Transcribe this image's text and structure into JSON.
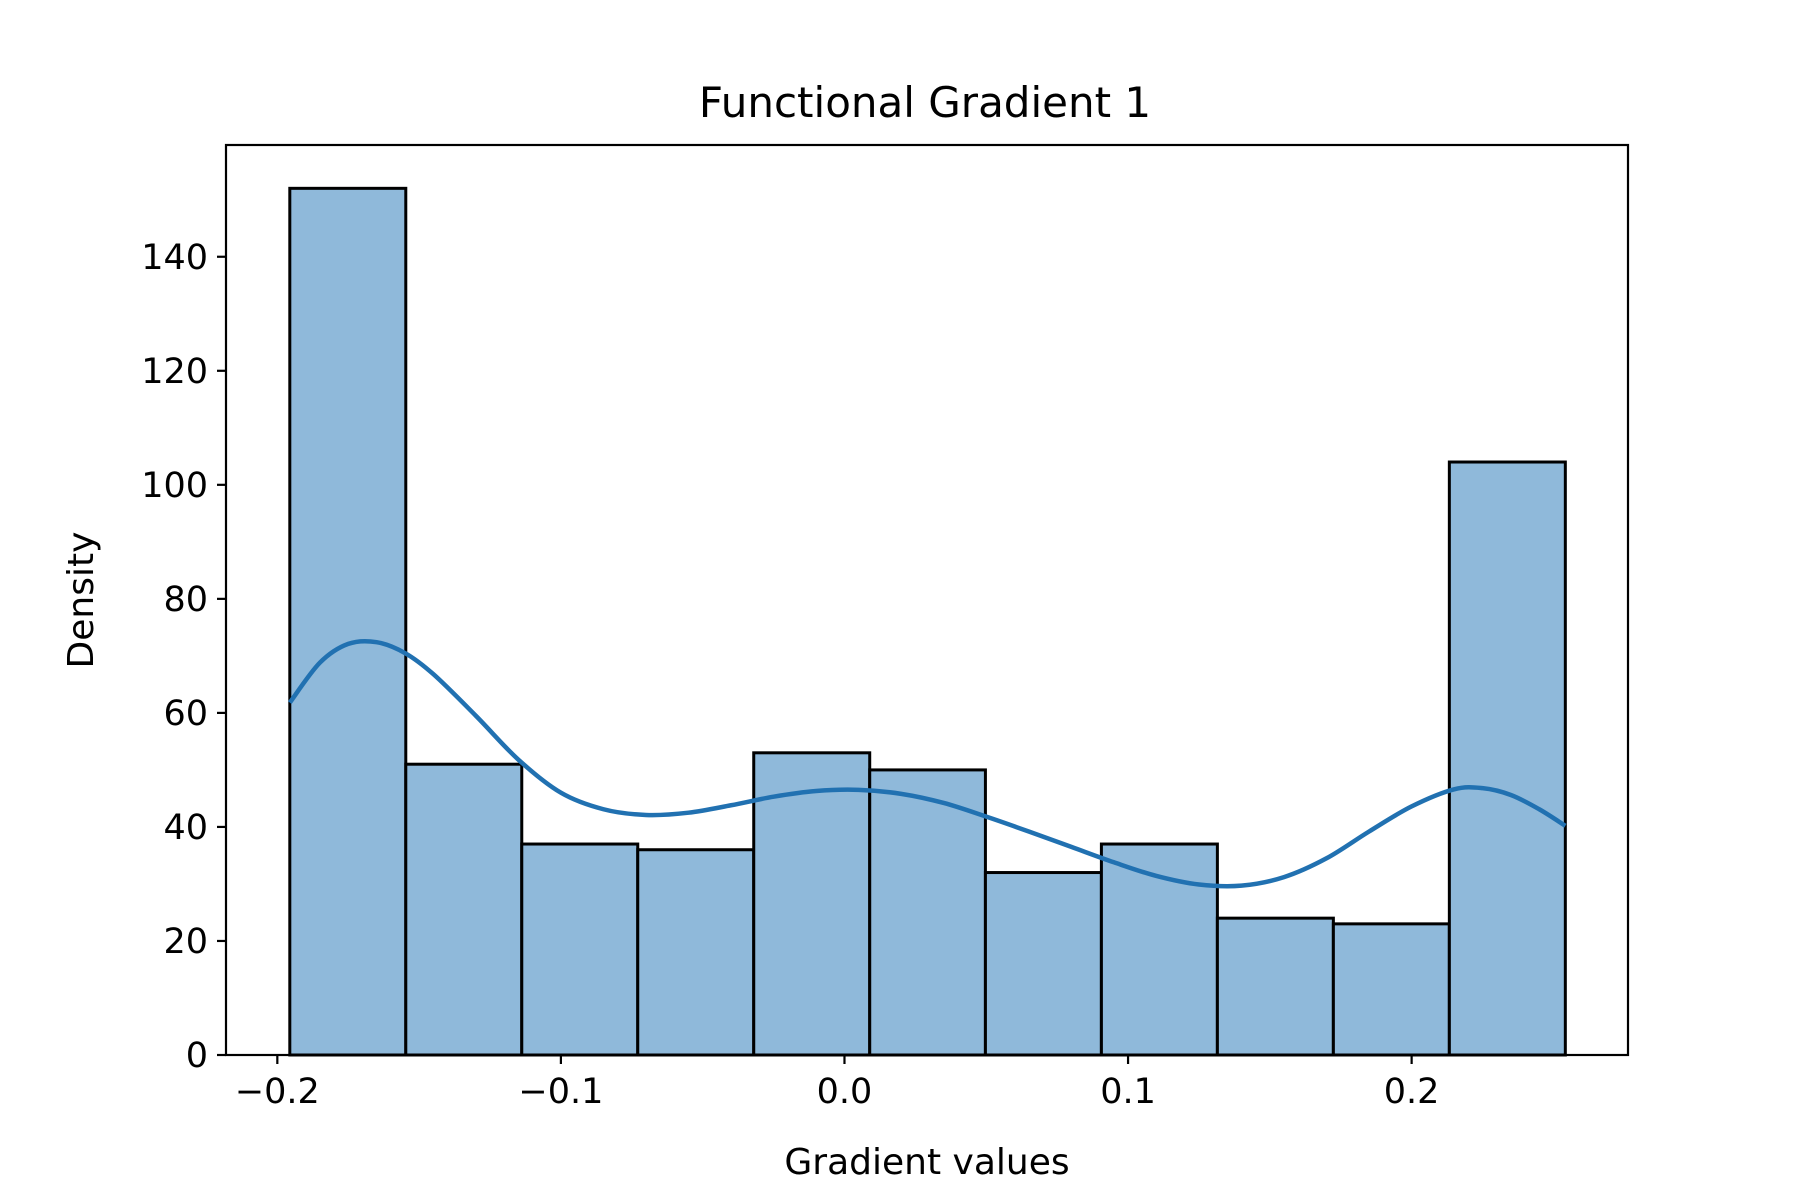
{
  "chart_data": {
    "type": "bar",
    "title": "Functional Gradient 1",
    "xlabel": "Gradient values",
    "ylabel": "Density",
    "xlim": [
      -0.2181,
      0.2763
    ],
    "ylim": [
      0,
      159.6
    ],
    "xticks": [
      -0.2,
      -0.1,
      0.0,
      0.1,
      0.2
    ],
    "xtick_labels": [
      "−0.2",
      "−0.1",
      "0.0",
      "0.1",
      "0.2"
    ],
    "yticks": [
      0,
      20,
      40,
      60,
      80,
      100,
      120,
      140
    ],
    "ytick_labels": [
      "0",
      "20",
      "40",
      "60",
      "80",
      "100",
      "120",
      "140"
    ],
    "grid": false,
    "legend": "none",
    "bar_color": "#8fb9da",
    "edge_color": "#000000",
    "kde_color": "#2171b1",
    "bins": [
      {
        "x0": -0.1956,
        "x1": -0.1547,
        "value": 152
      },
      {
        "x0": -0.1547,
        "x1": -0.1138,
        "value": 51
      },
      {
        "x0": -0.1138,
        "x1": -0.0729,
        "value": 37
      },
      {
        "x0": -0.0729,
        "x1": -0.032,
        "value": 36
      },
      {
        "x0": -0.032,
        "x1": 0.0089,
        "value": 53
      },
      {
        "x0": 0.0089,
        "x1": 0.0497,
        "value": 50
      },
      {
        "x0": 0.0497,
        "x1": 0.0906,
        "value": 32
      },
      {
        "x0": 0.0906,
        "x1": 0.1315,
        "value": 37
      },
      {
        "x0": 0.1315,
        "x1": 0.1724,
        "value": 24
      },
      {
        "x0": 0.1724,
        "x1": 0.2133,
        "value": 23
      },
      {
        "x0": 0.2133,
        "x1": 0.2542,
        "value": 104
      }
    ],
    "kde": {
      "x": [
        -0.1956,
        -0.185,
        -0.175,
        -0.165,
        -0.155,
        -0.145,
        -0.13,
        -0.115,
        -0.1,
        -0.085,
        -0.07,
        -0.055,
        -0.04,
        -0.025,
        -0.01,
        0.005,
        0.02,
        0.035,
        0.05,
        0.065,
        0.08,
        0.095,
        0.11,
        0.125,
        0.14,
        0.155,
        0.17,
        0.185,
        0.2,
        0.215,
        0.225,
        0.235,
        0.245,
        0.2542
      ],
      "y": [
        61.8,
        68.8,
        72.1,
        72.4,
        70.5,
        66.8,
        59.5,
        51.8,
        46.0,
        43.1,
        42.1,
        42.5,
        43.8,
        45.3,
        46.3,
        46.5,
        45.8,
        44.2,
        41.8,
        39.2,
        36.5,
        33.8,
        31.4,
        29.9,
        29.7,
        31.2,
        34.5,
        39.2,
        43.6,
        46.6,
        46.8,
        45.6,
        43.1,
        40.2
      ]
    }
  }
}
